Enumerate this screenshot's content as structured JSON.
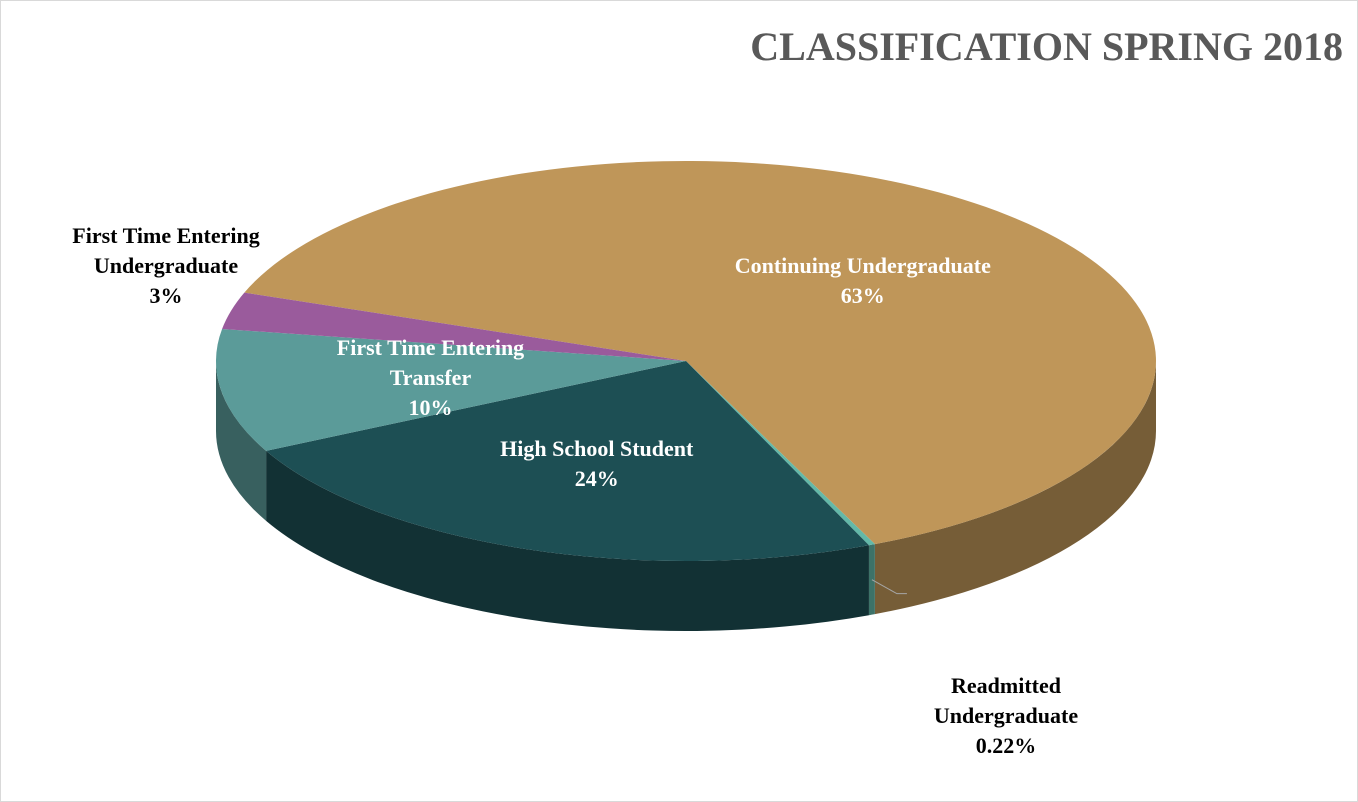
{
  "chart_data": {
    "type": "pie3d",
    "title": "CLASSIFICATION SPRING 2018",
    "categories": [
      "Continuing Undergraduate",
      "Readmitted Undergraduate",
      "High School Student",
      "First Time Entering Transfer",
      "First Time Entering Undergraduate"
    ],
    "values": [
      63,
      0.22,
      24,
      10,
      3
    ],
    "value_labels": [
      "63%",
      "0.22%",
      "24%",
      "10%",
      "3%"
    ],
    "colors": [
      "#bf9659",
      "#63b8a8",
      "#1d4f54",
      "#5b9b99",
      "#9a5b9c"
    ]
  }
}
